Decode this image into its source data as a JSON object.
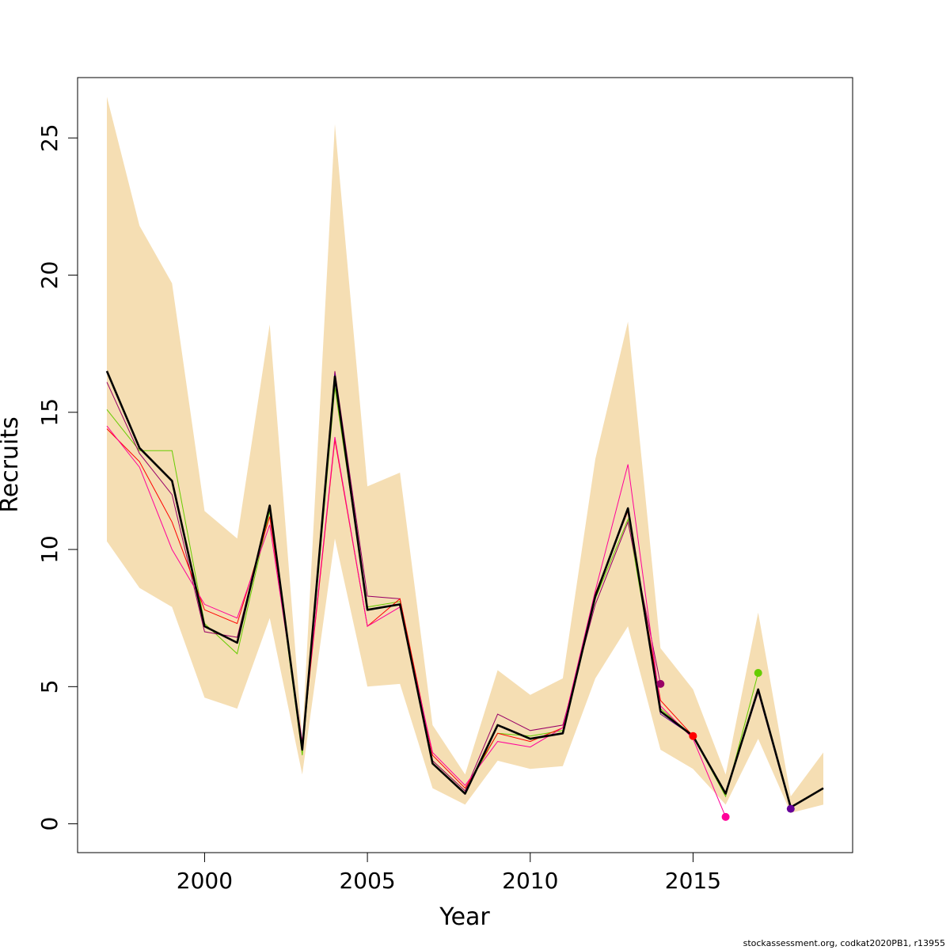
{
  "chart_data": {
    "type": "line",
    "xlabel": "Year",
    "ylabel": "Recruits",
    "xlim": [
      1996.1,
      2019.9
    ],
    "ylim": [
      -1.05,
      27.2
    ],
    "x_ticks": [
      2000,
      2005,
      2010,
      2015
    ],
    "y_ticks": [
      0,
      5,
      10,
      15,
      20,
      25
    ],
    "grid": false,
    "legend": "none",
    "band": {
      "color": "#F5DEB3",
      "x": [
        1997,
        1998,
        1999,
        2000,
        2001,
        2002,
        2003,
        2004,
        2005,
        2006,
        2007,
        2008,
        2009,
        2010,
        2011,
        2012,
        2013,
        2014,
        2015,
        2016,
        2017,
        2018,
        2019
      ],
      "upper": [
        26.5,
        21.8,
        19.7,
        11.4,
        10.4,
        18.2,
        3.1,
        25.5,
        12.3,
        12.8,
        3.6,
        1.8,
        5.6,
        4.7,
        5.3,
        13.3,
        18.3,
        6.4,
        4.9,
        1.8,
        7.7,
        1.0,
        2.6
      ],
      "lower": [
        10.3,
        8.6,
        7.9,
        4.6,
        4.2,
        7.5,
        1.8,
        10.4,
        5.0,
        5.1,
        1.3,
        0.7,
        2.3,
        2.0,
        2.1,
        5.3,
        7.2,
        2.7,
        2.0,
        0.7,
        3.1,
        0.4,
        0.7
      ]
    },
    "main_series": {
      "color": "#000000",
      "x": [
        1997,
        1998,
        1999,
        2000,
        2001,
        2002,
        2003,
        2004,
        2005,
        2006,
        2007,
        2008,
        2009,
        2010,
        2011,
        2012,
        2013,
        2014,
        2015,
        2016,
        2017,
        2018,
        2019
      ],
      "y": [
        16.5,
        13.7,
        12.5,
        7.2,
        6.6,
        11.6,
        2.7,
        16.3,
        7.8,
        8.0,
        2.2,
        1.1,
        3.6,
        3.1,
        3.3,
        8.3,
        11.5,
        4.1,
        3.2,
        1.1,
        4.9,
        0.6,
        1.3
      ]
    },
    "series": [
      {
        "color": "#66CC00",
        "x": [
          1997,
          1998,
          1999,
          2000,
          2001,
          2002,
          2003,
          2004,
          2005,
          2006,
          2007,
          2008,
          2009,
          2010,
          2011,
          2012,
          2013,
          2014,
          2015,
          2016,
          2017
        ],
        "y": [
          15.1,
          13.6,
          13.6,
          7.3,
          6.2,
          11.4,
          2.5,
          15.9,
          7.9,
          8.1,
          2.3,
          1.2,
          3.3,
          3.2,
          3.4,
          8.2,
          11.1,
          4.2,
          3.2,
          1.0,
          5.5
        ],
        "end_marker": true
      },
      {
        "color": "#990066",
        "x": [
          1997,
          1998,
          1999,
          2000,
          2001,
          2002,
          2003,
          2004,
          2005,
          2006,
          2007,
          2008,
          2009,
          2010,
          2011,
          2012,
          2013,
          2014
        ],
        "y": [
          16.1,
          13.5,
          12.0,
          7.0,
          6.8,
          11.5,
          2.8,
          16.5,
          8.3,
          8.2,
          2.3,
          1.2,
          4.0,
          3.4,
          3.6,
          8.0,
          11.0,
          5.1
        ],
        "end_marker": true
      },
      {
        "color": "#FF0000",
        "x": [
          1997,
          1998,
          1999,
          2000,
          2001,
          2002,
          2003,
          2004,
          2005,
          2006,
          2007,
          2008,
          2009,
          2010,
          2011,
          2012,
          2013,
          2014,
          2015
        ],
        "y": [
          14.4,
          13.2,
          11.0,
          7.8,
          7.3,
          11.2,
          2.9,
          14.0,
          7.2,
          8.2,
          2.5,
          1.3,
          3.3,
          3.0,
          3.5,
          8.4,
          11.4,
          4.5,
          3.2
        ],
        "end_marker": true
      },
      {
        "color": "#FF0099",
        "x": [
          1997,
          1998,
          1999,
          2000,
          2001,
          2002,
          2003,
          2004,
          2005,
          2006,
          2007,
          2008,
          2009,
          2010,
          2011,
          2012,
          2013,
          2014,
          2015,
          2016
        ],
        "y": [
          14.5,
          13.0,
          10.0,
          8.0,
          7.5,
          10.9,
          3.0,
          14.1,
          7.2,
          7.9,
          2.6,
          1.4,
          3.0,
          2.8,
          3.5,
          8.5,
          13.1,
          4.3,
          3.1,
          0.25
        ],
        "end_marker": true
      },
      {
        "color": "#660099",
        "x": [
          1997,
          1998,
          1999,
          2000,
          2001,
          2002,
          2003,
          2004,
          2005,
          2006,
          2007,
          2008,
          2009,
          2010,
          2011,
          2012,
          2013,
          2014,
          2015,
          2016,
          2017,
          2018
        ],
        "y": [
          16.5,
          13.7,
          12.5,
          7.2,
          6.6,
          11.6,
          2.7,
          16.4,
          7.8,
          8.0,
          2.2,
          1.1,
          3.6,
          3.1,
          3.3,
          8.3,
          11.5,
          4.0,
          3.2,
          1.1,
          4.8,
          0.55
        ],
        "end_marker": true
      }
    ]
  },
  "footer": {
    "credit": "stockassessment.org, codkat2020PB1, r13955"
  }
}
